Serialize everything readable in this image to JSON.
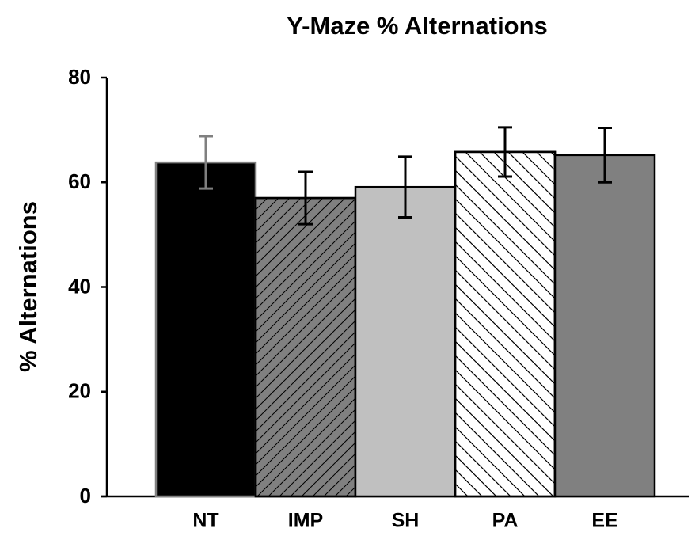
{
  "chart_data": {
    "type": "bar",
    "title": "Y-Maze % Alternations",
    "ylabel": "% Alternations",
    "categories": [
      "NT",
      "IMP",
      "SH",
      "PA",
      "EE"
    ],
    "values": [
      63.8,
      57.0,
      59.1,
      65.8,
      65.2
    ],
    "errors": [
      5.0,
      5.0,
      5.8,
      4.7,
      5.2
    ],
    "colors": [
      "#000000",
      "#808080",
      "#c0c0c0",
      "#ffffff",
      "#808080"
    ],
    "edge_colors": [
      "#808080",
      "#000000",
      "#000000",
      "#000000",
      "#000000"
    ],
    "error_colors": [
      "#808080",
      "#000000",
      "#000000",
      "#000000",
      "#000000"
    ],
    "hatch": [
      null,
      "/",
      null,
      "\\",
      null
    ],
    "ylim": [
      0,
      80
    ],
    "yticks": [
      0,
      20,
      40,
      60,
      80
    ],
    "grid": false
  }
}
